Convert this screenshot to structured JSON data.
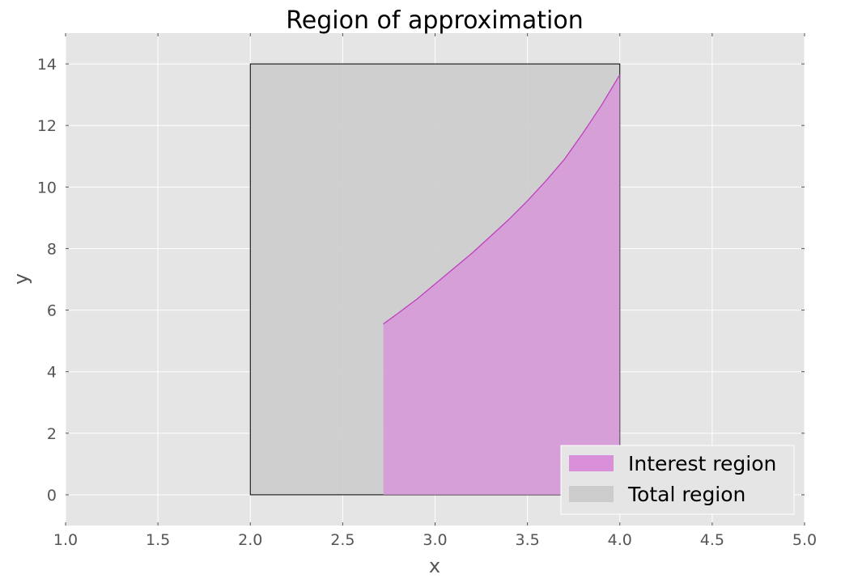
{
  "chart_data": {
    "type": "area",
    "title": "Region of approximation",
    "xlabel": "x",
    "ylabel": "y",
    "xlim": [
      1.0,
      5.0
    ],
    "ylim": [
      -1,
      15
    ],
    "xticks": [
      1.0,
      1.5,
      2.0,
      2.5,
      3.0,
      3.5,
      4.0,
      4.5,
      5.0
    ],
    "xtick_labels": [
      "1.0",
      "1.5",
      "2.0",
      "2.5",
      "3.0",
      "3.5",
      "4.0",
      "4.5",
      "5.0"
    ],
    "yticks": [
      0,
      2,
      4,
      6,
      8,
      10,
      12,
      14
    ],
    "ytick_labels": [
      "0",
      "2",
      "4",
      "6",
      "8",
      "10",
      "12",
      "14"
    ],
    "grid": true,
    "legend_position": "bottom-right",
    "series": [
      {
        "name": "Interest region",
        "color": "#d98fd9",
        "edge_color": "#bf40bf",
        "x": [
          2.72,
          2.8,
          2.9,
          3.0,
          3.1,
          3.2,
          3.3,
          3.4,
          3.5,
          3.6,
          3.7,
          3.8,
          3.9,
          4.0
        ],
        "y_upper": [
          5.55,
          5.9,
          6.35,
          6.85,
          7.35,
          7.85,
          8.4,
          8.95,
          9.55,
          10.2,
          10.9,
          11.75,
          12.65,
          13.65
        ],
        "y_lower": 0
      },
      {
        "name": "Total region",
        "color": "#cccccc",
        "edge_color": "#000000",
        "x": [
          2.0,
          4.0
        ],
        "y": [
          0,
          14
        ]
      }
    ]
  }
}
